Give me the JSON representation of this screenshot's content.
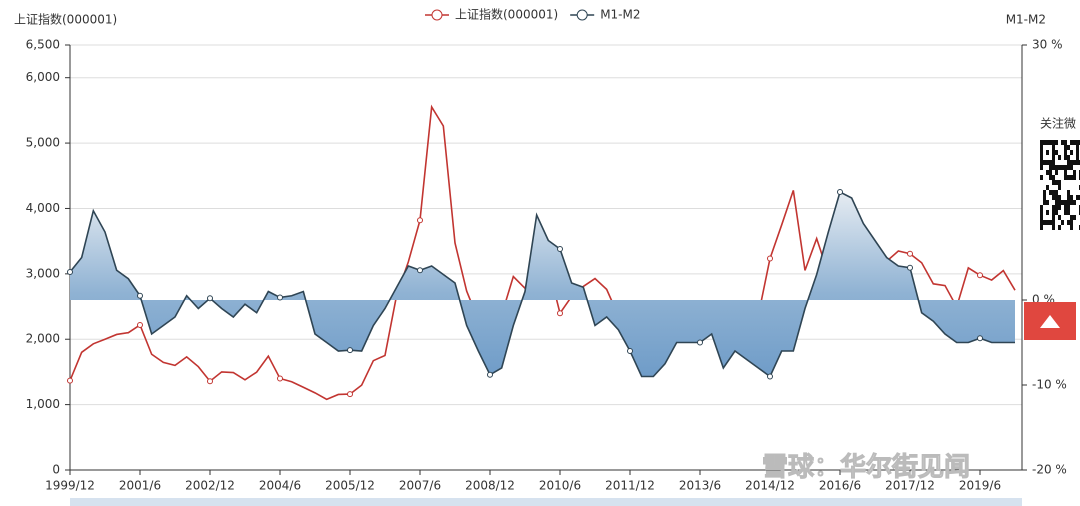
{
  "chart_data": {
    "type": "line",
    "y_label": "上证指数(000001)",
    "y2_label": "M1-M2",
    "categories": [
      "1999/12",
      null,
      null,
      null,
      null,
      null,
      "2001/6",
      null,
      null,
      null,
      null,
      null,
      "2002/12",
      null,
      null,
      null,
      null,
      null,
      "2004/6",
      null,
      null,
      null,
      null,
      null,
      "2005/12",
      null,
      null,
      null,
      null,
      null,
      "2007/6",
      null,
      null,
      null,
      null,
      null,
      "2008/12",
      null,
      null,
      null,
      null,
      null,
      "2010/6",
      null,
      null,
      null,
      null,
      null,
      "2011/12",
      null,
      null,
      null,
      null,
      null,
      "2013/6",
      null,
      null,
      null,
      null,
      null,
      "2014/12",
      null,
      null,
      null,
      null,
      null,
      "2016/6",
      null,
      null,
      null,
      null,
      null,
      "2017/12",
      null,
      null,
      null,
      null,
      null,
      "2019/6",
      null,
      null,
      null
    ],
    "series": [
      {
        "name": "上证指数(000001)",
        "color": "#c23531",
        "values": [
          1367,
          1800,
          1930,
          2000,
          2073,
          2100,
          2218,
          1770,
          1646,
          1600,
          1730,
          1580,
          1358,
          1500,
          1490,
          1380,
          1497,
          1742,
          1400,
          1350,
          1266,
          1180,
          1080,
          1155,
          1161,
          1298,
          1672,
          1752,
          2675,
          3183,
          3820,
          5552,
          5261,
          3472,
          2736,
          2293,
          1821,
          2373,
          2959,
          2779,
          3277,
          3109,
          2398,
          2655,
          2808,
          2928,
          2762,
          2359,
          2199,
          2262,
          2225,
          2086,
          2269,
          2237,
          1979,
          2175,
          2116,
          2033,
          2048,
          2364,
          3235,
          3748,
          4277,
          3053,
          3539,
          3004,
          2930,
          3005,
          3104,
          3223,
          3192,
          3349,
          3307,
          3169,
          2847,
          2821,
          2494,
          3091,
          2979,
          2905,
          3050,
          2750
        ]
      },
      {
        "name": "M1-M2",
        "color": "#2f4554",
        "axis": "y2",
        "values": [
          3.3,
          5,
          10.5,
          8,
          3.5,
          2.5,
          0.5,
          -4,
          -3,
          -2,
          0.5,
          -1,
          0.2,
          -1,
          -2,
          -0.5,
          -1.5,
          1,
          0.3,
          0.5,
          1,
          -4,
          -5,
          -6,
          -5.9,
          -6,
          -3,
          -1,
          1.5,
          4,
          3.5,
          4,
          3,
          2,
          -3,
          -6,
          -8.8,
          -8,
          -3,
          1,
          10,
          7,
          6,
          2,
          1.5,
          -3,
          -2,
          -3.5,
          -6,
          -9,
          -9,
          -7.5,
          -5,
          -5,
          -5,
          -4,
          -8,
          -6,
          -7,
          -8,
          -9,
          -6,
          -6,
          -1,
          3,
          8,
          12.7,
          12,
          9,
          7,
          5,
          4,
          3.8,
          -1.5,
          -2.5,
          -4,
          -5,
          -5,
          -4.5,
          -5,
          -5,
          -5
        ]
      }
    ],
    "ylim": [
      0,
      6500
    ],
    "yticks": [
      0,
      {
        "value": 1000,
        "label": "1,000"
      },
      {
        "value": 2000,
        "label": "2,000"
      },
      {
        "value": 3000,
        "label": "3,000"
      },
      {
        "value": 4000,
        "label": "4,000"
      },
      {
        "value": 5000,
        "label": "5,000"
      },
      {
        "value": 6000,
        "label": "6,000"
      },
      {
        "value": 6500,
        "label": "6,500"
      }
    ],
    "y2lim": [
      -20,
      30
    ],
    "y2ticks": [
      {
        "value": 30,
        "label": "30 %"
      },
      {
        "value": 0,
        "label": "0 %"
      },
      {
        "value": -10,
        "label": "-10 %"
      },
      {
        "value": -20,
        "label": "-20 %"
      }
    ],
    "grid": true,
    "legend": "top",
    "annotations": [
      "关注微",
      "雪球：华尔街见闻"
    ]
  }
}
